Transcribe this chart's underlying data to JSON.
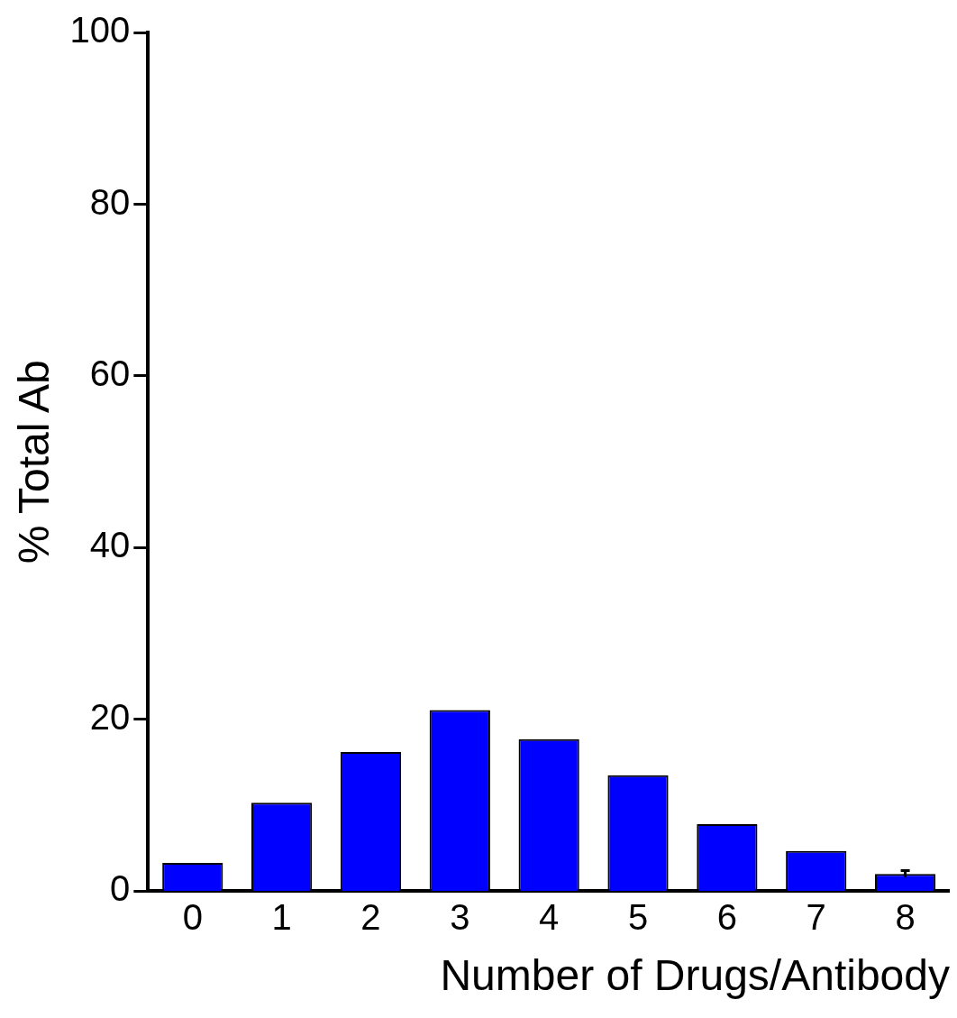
{
  "chart_data": {
    "type": "bar",
    "xlabel": "Number of Drugs/Antibody",
    "ylabel": "% Total Ab",
    "categories": [
      "0",
      "1",
      "2",
      "3",
      "4",
      "5",
      "6",
      "7",
      "8"
    ],
    "values": [
      3.3,
      10.3,
      16.2,
      21.1,
      17.7,
      13.5,
      7.8,
      4.7,
      2.0
    ],
    "errors": [
      null,
      null,
      null,
      null,
      null,
      null,
      null,
      null,
      0.4
    ],
    "color": "#0000ff",
    "ylim": [
      0,
      100
    ],
    "yticks": [
      0,
      20,
      40,
      60,
      80,
      100
    ],
    "grid": false,
    "legend": false
  }
}
